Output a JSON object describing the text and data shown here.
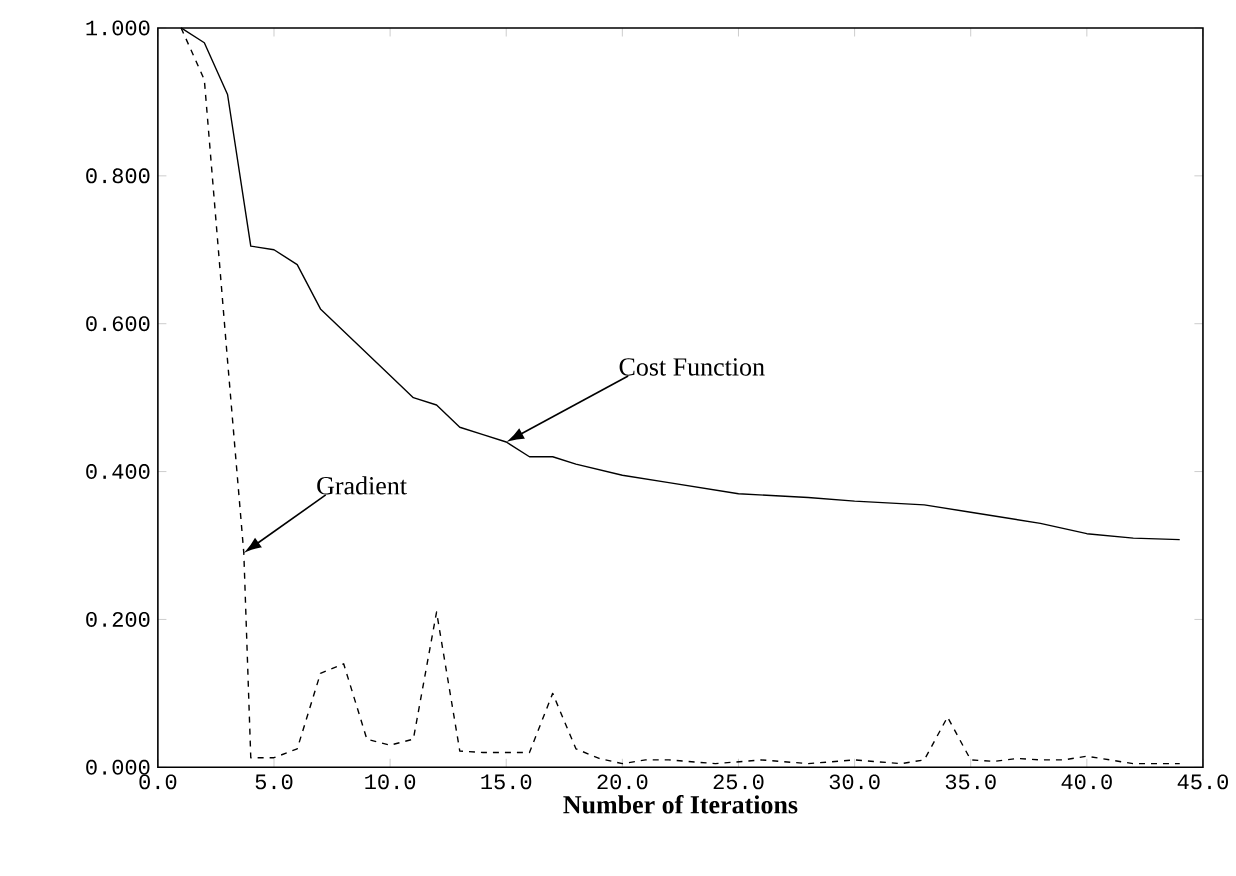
{
  "chart_data": {
    "type": "line",
    "xlabel": "Number of Iterations",
    "xlim": [
      0,
      45
    ],
    "ylim": [
      0,
      1
    ],
    "xticks": [
      {
        "value": 0,
        "label": "0.0"
      },
      {
        "value": 5,
        "label": "5.0"
      },
      {
        "value": 10,
        "label": "10.0"
      },
      {
        "value": 15,
        "label": "15.0"
      },
      {
        "value": 20,
        "label": "20.0"
      },
      {
        "value": 25,
        "label": "25.0"
      },
      {
        "value": 30,
        "label": "30.0"
      },
      {
        "value": 35,
        "label": "35.0"
      },
      {
        "value": 40,
        "label": "40.0"
      },
      {
        "value": 45,
        "label": "45.0"
      }
    ],
    "yticks": [
      {
        "value": 0,
        "label": "0.000"
      },
      {
        "value": 0.2,
        "label": "0.200"
      },
      {
        "value": 0.4,
        "label": "0.400"
      },
      {
        "value": 0.6,
        "label": "0.600"
      },
      {
        "value": 0.8,
        "label": "0.800"
      },
      {
        "value": 1,
        "label": "1.000"
      }
    ],
    "series": [
      {
        "color": "#000000",
        "line_style": "solid",
        "x": [
          1,
          2,
          3,
          4,
          5,
          6,
          7,
          8,
          9,
          10,
          11,
          12,
          13,
          14,
          15,
          16,
          17,
          18,
          20,
          22,
          25,
          28,
          30,
          33,
          35,
          38,
          40,
          42,
          44
        ],
        "values": [
          1.0,
          0.98,
          0.91,
          0.705,
          0.7,
          0.68,
          0.62,
          0.59,
          0.56,
          0.53,
          0.5,
          0.49,
          0.46,
          0.45,
          0.44,
          0.42,
          0.42,
          0.41,
          0.395,
          0.385,
          0.37,
          0.365,
          0.36,
          0.355,
          0.345,
          0.33,
          0.316,
          0.31,
          0.308
        ]
      },
      {
        "color": "#000000",
        "line_style": "dashed",
        "x": [
          1,
          2,
          3,
          3.7,
          4,
          5,
          6,
          7,
          8,
          9,
          10,
          11,
          12,
          13,
          14,
          15,
          16,
          17,
          18,
          19,
          20,
          21,
          22,
          24,
          26,
          28,
          30,
          32,
          33,
          34,
          35,
          36,
          37,
          38,
          39,
          40,
          41,
          42,
          44
        ],
        "values": [
          1.0,
          0.93,
          0.55,
          0.29,
          0.013,
          0.013,
          0.025,
          0.127,
          0.14,
          0.038,
          0.03,
          0.038,
          0.21,
          0.022,
          0.02,
          0.02,
          0.02,
          0.1,
          0.025,
          0.012,
          0.005,
          0.01,
          0.01,
          0.005,
          0.01,
          0.005,
          0.01,
          0.005,
          0.01,
          0.068,
          0.01,
          0.008,
          0.012,
          0.01,
          0.01,
          0.015,
          0.01,
          0.005,
          0.005
        ]
      }
    ],
    "annotations": [
      {
        "text": "Cost Function",
        "x": 15,
        "y": 0.44
      },
      {
        "text": "Gradient",
        "x": 3.7,
        "y": 0.29
      }
    ]
  }
}
